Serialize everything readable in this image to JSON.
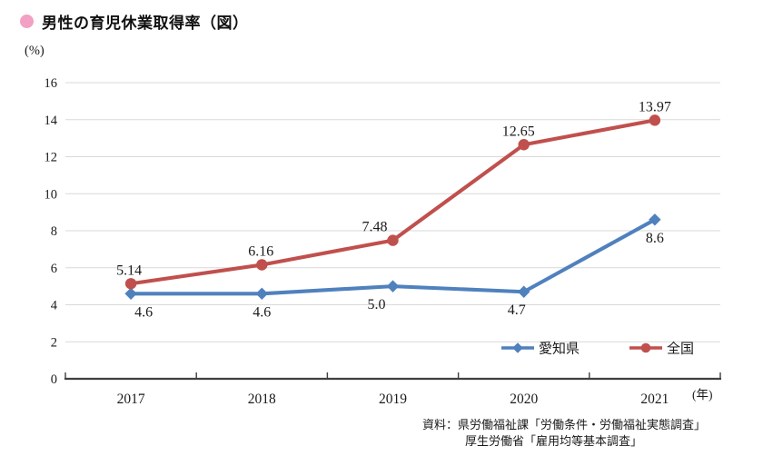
{
  "page": {
    "title": "男性の育児休業取得率（図）",
    "source_line1": "資料：県労働福祉課「労働条件・労働福祉実態調査」",
    "source_line2": "厚生労働省「雇用均等基本調査」",
    "accent_pink": "#f2a0c3"
  },
  "chart_data": {
    "type": "line",
    "title": "男性の育児休業取得率（図）",
    "categories": [
      "2017",
      "2018",
      "2019",
      "2020",
      "2021"
    ],
    "series": [
      {
        "name": "愛知県",
        "color": "#4f81bd",
        "marker": "diamond",
        "values": [
          4.6,
          4.6,
          5.0,
          4.7,
          8.6
        ],
        "labels": [
          "4.6",
          "4.6",
          "5.0",
          "4.7",
          "8.6"
        ]
      },
      {
        "name": "全国",
        "color": "#c0504d",
        "marker": "circle",
        "values": [
          5.14,
          6.16,
          7.48,
          12.65,
          13.97
        ],
        "labels": [
          "5.14",
          "6.16",
          "7.48",
          "12.65",
          "13.97"
        ]
      }
    ],
    "ylim": [
      0,
      16
    ],
    "ytick_step": 2,
    "ylabel_unit": "(%)",
    "xlabel_unit": "(年)",
    "grid": true,
    "legend_position": "inside-bottom-right",
    "gridline_color": "#d9d9d9",
    "axis_color": "#3f3f3f",
    "label_text_color": "#1a1a1a"
  }
}
